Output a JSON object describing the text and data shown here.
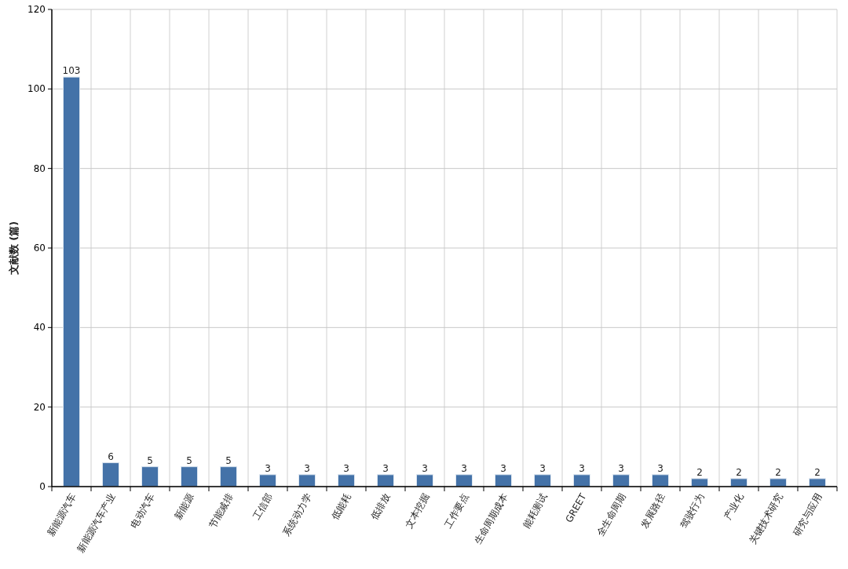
{
  "chart_data": {
    "type": "bar",
    "ylabel": "文献数 (篇)",
    "categories": [
      "新能源汽车",
      "新能源汽车产业",
      "电动汽车",
      "新能源",
      "节能减排",
      "工信部",
      "系统动力学",
      "低能耗",
      "低排放",
      "文本挖掘",
      "工作要点",
      "生命周期成本",
      "能耗测试",
      "GREET",
      "全生命周期",
      "发展路径",
      "驾驶行为",
      "产业化",
      "关键技术研究",
      "研究与应用"
    ],
    "values": [
      103,
      6,
      5,
      5,
      5,
      3,
      3,
      3,
      3,
      3,
      3,
      3,
      3,
      3,
      3,
      3,
      2,
      2,
      2,
      2
    ],
    "color": "#4472a8",
    "ylim": [
      0,
      120
    ],
    "yticks": [
      0,
      20,
      40,
      60,
      80,
      100,
      120
    ],
    "grid": true,
    "data_labels": true
  }
}
